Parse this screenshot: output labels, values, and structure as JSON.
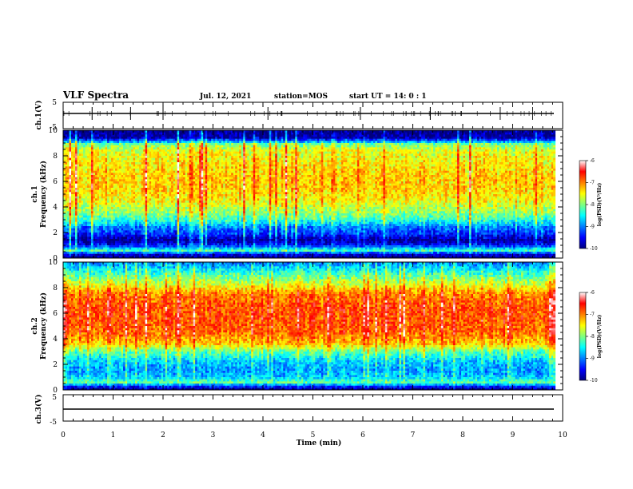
{
  "header": {
    "title": "VLF Spectra",
    "date": "Jul. 12, 2021",
    "station": "station=MOS",
    "start": "start UT =  14: 0  : 1"
  },
  "colors": {
    "jet": [
      "#00007f",
      "#0000ff",
      "#007fff",
      "#00ffff",
      "#7fff7f",
      "#ffff00",
      "#ff7f00",
      "#ff0000",
      "#ffffff"
    ]
  },
  "chart_data": [
    {
      "type": "line",
      "panel": "ch1-waveform",
      "ylabel": "ch.1(V)",
      "ylim": [
        -5,
        5
      ],
      "ytick_labels": [
        "5",
        "-5"
      ],
      "xlim": [
        0,
        10
      ],
      "baseline": -1.5
    },
    {
      "type": "heatmap",
      "panel": "ch1-spectrogram",
      "ylabel": "ch.1 Frequency (kHz)",
      "ylim": [
        0,
        10
      ],
      "yticks": [
        0,
        2,
        4,
        6,
        8,
        10
      ],
      "xlim": [
        0,
        9.85
      ],
      "colorbar": {
        "label": "log(PSD)(V²/Hz)",
        "range": [
          -10,
          -6
        ],
        "ticks": [
          "-6",
          "-7",
          "-8",
          "-9",
          "-10"
        ]
      },
      "freq_profile": [
        {
          "f": 0.0,
          "v": -10.0
        },
        {
          "f": 0.3,
          "v": -9.6
        },
        {
          "f": 0.6,
          "v": -8.2
        },
        {
          "f": 1.0,
          "v": -9.4
        },
        {
          "f": 1.4,
          "v": -9.9
        },
        {
          "f": 1.9,
          "v": -9.3
        },
        {
          "f": 2.4,
          "v": -9.0
        },
        {
          "f": 3.0,
          "v": -8.3
        },
        {
          "f": 3.6,
          "v": -7.9
        },
        {
          "f": 4.5,
          "v": -7.5
        },
        {
          "f": 5.5,
          "v": -7.3
        },
        {
          "f": 6.5,
          "v": -7.3
        },
        {
          "f": 7.5,
          "v": -7.45
        },
        {
          "f": 8.4,
          "v": -7.6
        },
        {
          "f": 8.9,
          "v": -8.0
        },
        {
          "f": 9.1,
          "v": -8.8
        },
        {
          "f": 9.4,
          "v": -9.8
        },
        {
          "f": 10.0,
          "v": -10.0
        }
      ]
    },
    {
      "type": "heatmap",
      "panel": "ch2-spectrogram",
      "ylabel": "ch.2 Frequency (kHz)",
      "ylim": [
        0,
        10
      ],
      "yticks": [
        0,
        2,
        4,
        6,
        8,
        10
      ],
      "xlim": [
        0,
        9.85
      ],
      "colorbar": {
        "label": "log(PSD)(V²/Hz)",
        "range": [
          -10,
          -6
        ],
        "ticks": [
          "-6",
          "-7",
          "-8",
          "-9",
          "-10"
        ]
      },
      "freq_profile": [
        {
          "f": 0.0,
          "v": -10.0
        },
        {
          "f": 0.3,
          "v": -9.3
        },
        {
          "f": 0.6,
          "v": -8.1
        },
        {
          "f": 1.0,
          "v": -8.7
        },
        {
          "f": 1.5,
          "v": -8.9
        },
        {
          "f": 2.2,
          "v": -8.7
        },
        {
          "f": 3.0,
          "v": -8.1
        },
        {
          "f": 3.6,
          "v": -7.3
        },
        {
          "f": 4.5,
          "v": -6.9
        },
        {
          "f": 5.5,
          "v": -6.8
        },
        {
          "f": 6.5,
          "v": -6.8
        },
        {
          "f": 7.5,
          "v": -7.0
        },
        {
          "f": 8.2,
          "v": -7.6
        },
        {
          "f": 8.9,
          "v": -8.1
        },
        {
          "f": 9.5,
          "v": -8.6
        },
        {
          "f": 10.0,
          "v": -9.0
        }
      ]
    },
    {
      "type": "line",
      "panel": "ch3-waveform",
      "ylabel": "ch.3(V)",
      "ylim": [
        -5,
        5
      ],
      "ytick_labels": [
        "5",
        "-5"
      ],
      "xlim": [
        0,
        10
      ],
      "baseline": -1.5
    }
  ],
  "xaxis": {
    "label": "Time (min)",
    "ticks": [
      "0",
      "1",
      "2",
      "3",
      "4",
      "5",
      "6",
      "7",
      "8",
      "9",
      "10"
    ]
  }
}
